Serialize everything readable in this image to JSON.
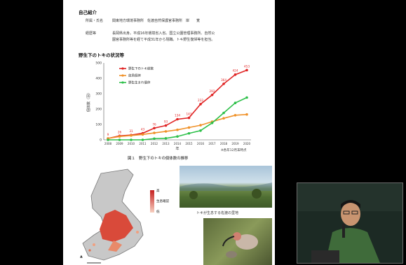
{
  "slide": {
    "section1_title": "自己紹介",
    "row1_label": "所属・氏名",
    "row1_value": "関東地方環境事務所　佐渡自然保護官事務所　岸　　寛",
    "row2_label": "経歴等",
    "row2_line1": "長岡県出身。平成16年環境省入省。国立公園管理事務所、自然公",
    "row2_line2": "園官事務所等を経て平成31年から現職。トキ野生復帰等を担当。",
    "section2_title": "野生下のトキの状況等",
    "figure_caption": "図１　野生下のトキの個体数の推移",
    "figure_note": "※各年12月末時点",
    "photo1_caption": "トキが生息する佐渡の里地",
    "map_legend_high": "高",
    "map_legend_mid": "生息確認",
    "map_legend_low": "低"
  },
  "chart_data": {
    "type": "line",
    "ylabel": "個体数（羽）",
    "xlabel": "年",
    "ylim": [
      0,
      500
    ],
    "yticks": [
      0,
      100,
      200,
      300,
      400,
      500
    ],
    "x": [
      "2008",
      "2009",
      "2010",
      "2011",
      "2012",
      "2013",
      "2014",
      "2015",
      "2016",
      "2017",
      "2018",
      "2019",
      "2020"
    ],
    "series": [
      {
        "name": "野生下のトキ総数",
        "color": "#e02424",
        "values": [
          9,
          26,
          31,
          43,
          76,
          93,
          134,
          143,
          232,
          292,
          364,
          424,
          453
        ]
      },
      {
        "name": "放鳥個体",
        "color": "#f0922a",
        "values": [
          9,
          22,
          28,
          35,
          45,
          55,
          65,
          80,
          95,
          118,
          140,
          160,
          165
        ]
      },
      {
        "name": "野生生まれ個体",
        "color": "#2ec04a",
        "values": [
          0,
          0,
          0,
          0,
          8,
          10,
          22,
          42,
          60,
          110,
          175,
          240,
          275
        ]
      }
    ],
    "data_labels_series": "野生下のトキ総数"
  }
}
